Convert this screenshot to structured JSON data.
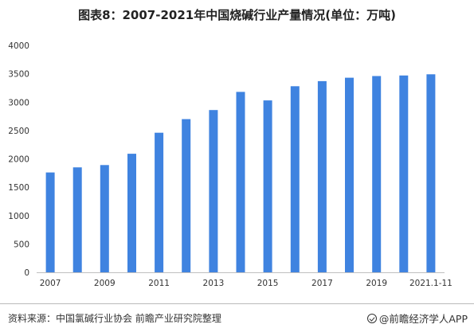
{
  "title": "图表8：2007-2021年中国烧碱行业产量情况(单位：万吨)",
  "source": "资料来源：中国氯碱行业协会 前瞻产业研究院整理",
  "brand": "@前瞻经济学人APP",
  "colors": {
    "bar": "#3f83e0",
    "axis": "#bfbfbf"
  },
  "chart_data": {
    "type": "bar",
    "title": "图表8：2007-2021年中国烧碱行业产量情况(单位：万吨)",
    "categories": [
      "2007",
      "2008",
      "2009",
      "2010",
      "2011",
      "2012",
      "2013",
      "2014",
      "2015",
      "2016",
      "2017",
      "2018",
      "2019",
      "2020",
      "2021.1-11"
    ],
    "tick_labels": [
      "2007",
      "2009",
      "2011",
      "2013",
      "2015",
      "2017",
      "2019",
      "2021.1-11"
    ],
    "values": [
      1760,
      1850,
      1890,
      2090,
      2460,
      2700,
      2860,
      3180,
      3030,
      3280,
      3370,
      3430,
      3460,
      3470,
      3490
    ],
    "ylim": [
      0,
      4000
    ],
    "yticks": [
      0,
      500,
      1000,
      1500,
      2000,
      2500,
      3000,
      3500,
      4000
    ],
    "xlabel": "",
    "ylabel": "",
    "grid": false,
    "legend": "none"
  }
}
